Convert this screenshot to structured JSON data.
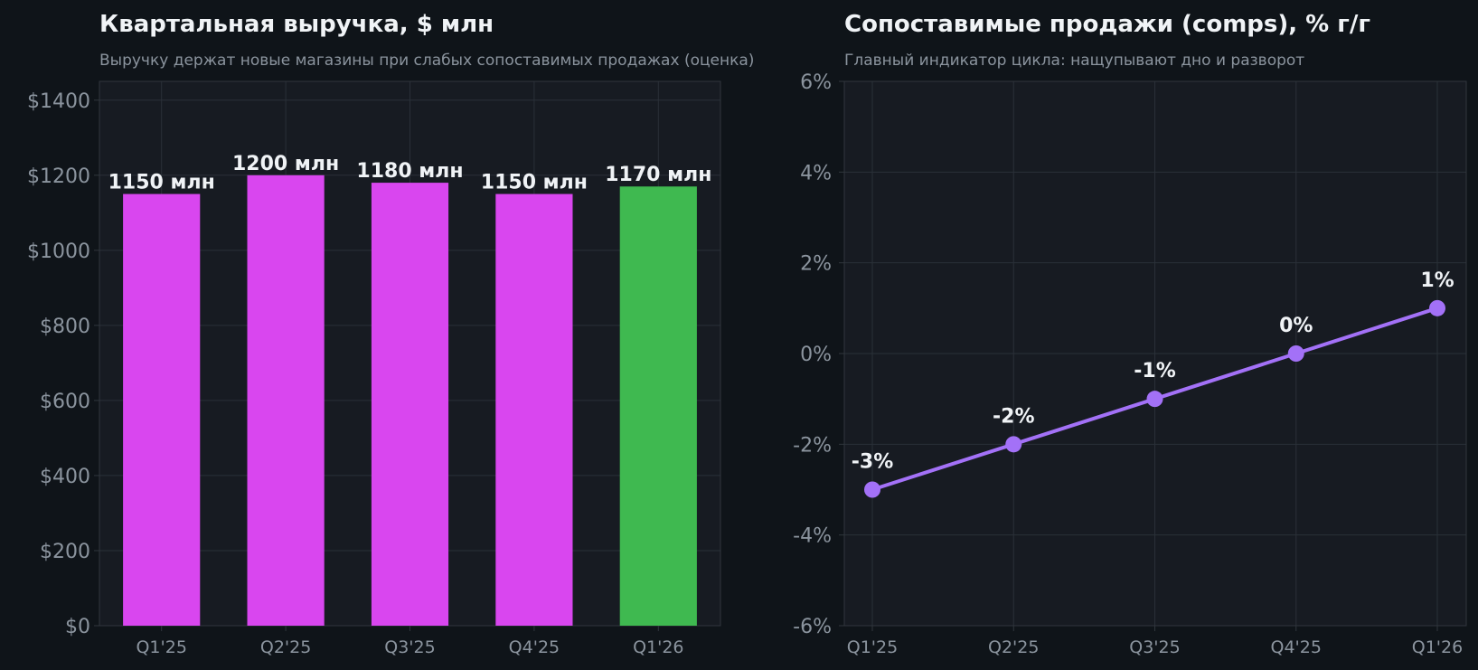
{
  "colors": {
    "background": "#0f1419",
    "plot_background": "#171b22",
    "bar": "#d946ef",
    "bar_highlight": "#3fb950",
    "line": "#a371f7",
    "title": "#f0f3f6",
    "muted": "#8b949e"
  },
  "chart_data": [
    {
      "type": "bar",
      "title": "Квартальная выручка, $ млн",
      "subtitle": "Выручку держат новые магазины при слабых сопоставимых продажах (оценка)",
      "xlabel": "",
      "ylabel": "",
      "categories": [
        "Q1'25",
        "Q2'25",
        "Q3'25",
        "Q4'25",
        "Q1'26"
      ],
      "values": [
        1150,
        1200,
        1180,
        1150,
        1170
      ],
      "data_labels": [
        "1150 млн",
        "1200 млн",
        "1180 млн",
        "1150 млн",
        "1170 млн"
      ],
      "highlight_index": 4,
      "ylim": [
        0,
        1450
      ],
      "yticks": [
        0,
        200,
        400,
        600,
        800,
        1000,
        1200,
        1400
      ],
      "ytick_labels": [
        "$0",
        "$200",
        "$400",
        "$600",
        "$800",
        "$1000",
        "$1200",
        "$1400"
      ],
      "grid": true
    },
    {
      "type": "line",
      "title": "Сопоставимые продажи (comps), % г/г",
      "subtitle": "Главный индикатор цикла: нащупывают дно и разворот",
      "xlabel": "",
      "ylabel": "",
      "categories": [
        "Q1'25",
        "Q2'25",
        "Q3'25",
        "Q4'25",
        "Q1'26"
      ],
      "values": [
        -3,
        -2,
        -1,
        0,
        1
      ],
      "data_labels": [
        "-3%",
        "-2%",
        "-1%",
        "0%",
        "1%"
      ],
      "ylim": [
        -6,
        6
      ],
      "yticks": [
        -6,
        -4,
        -2,
        0,
        2,
        4,
        6
      ],
      "ytick_labels": [
        "-6%",
        "-4%",
        "-2%",
        "0%",
        "2%",
        "4%",
        "6%"
      ],
      "grid": true
    }
  ]
}
